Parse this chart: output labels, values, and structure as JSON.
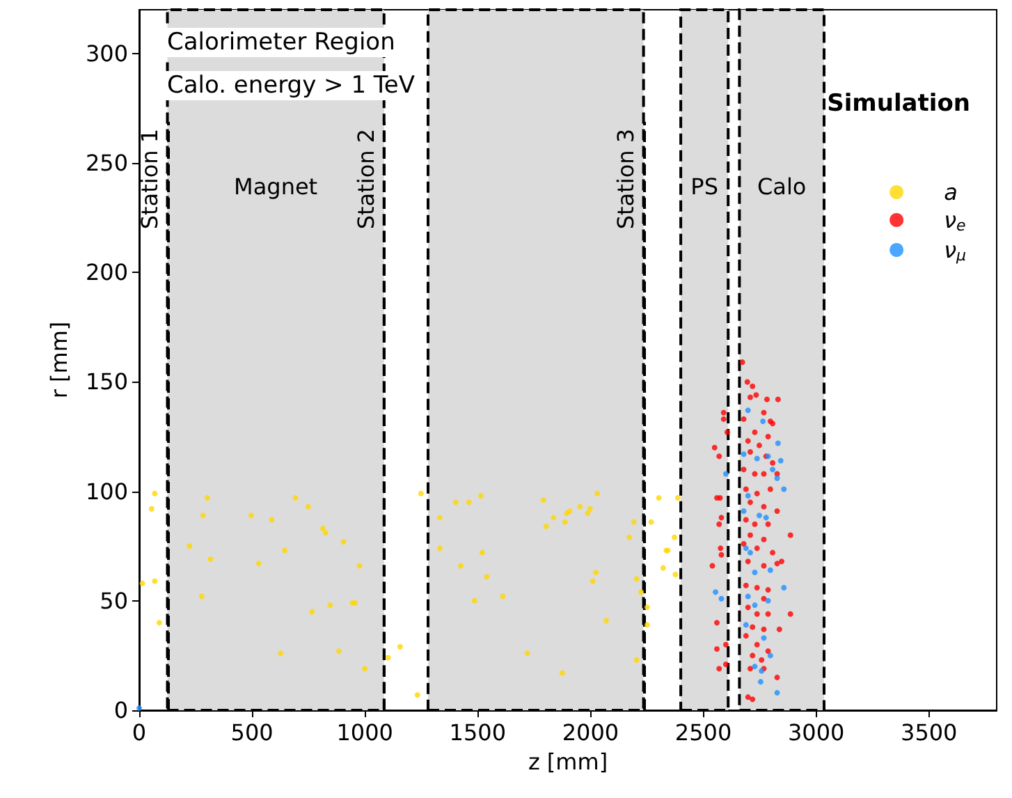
{
  "chart_data": {
    "type": "scatter",
    "xlabel": "z [mm]",
    "ylabel": "r [mm]",
    "xlim": [
      0,
      3800
    ],
    "xticks": [
      0,
      500,
      1000,
      1500,
      2000,
      2500,
      3000,
      3500
    ],
    "ylim": [
      0,
      320
    ],
    "yticks": [
      0,
      50,
      100,
      150,
      200,
      250,
      300
    ],
    "grid": false,
    "legend": "top right",
    "marker": "circle",
    "annotations": [
      "Calorimeter Region",
      "Calo. energy > 1 TeV",
      "Simulation"
    ],
    "ref_lines": [
      {
        "axis": "x",
        "value": 125,
        "label": "Station 1",
        "color": "#000000",
        "line_style": "dashed"
      },
      {
        "axis": "x",
        "value": 1085,
        "label": "Station 2",
        "color": "#000000",
        "line_style": "dashed"
      },
      {
        "axis": "x",
        "value": 2235,
        "label": "Station 3",
        "color": "#000000",
        "line_style": "dashed"
      }
    ],
    "bands": [
      {
        "axis": "x",
        "from": 125,
        "to": 1085,
        "label": "Magnet",
        "color": "#dcdcdc"
      },
      {
        "axis": "x",
        "from": 1280,
        "to": 2235,
        "label": null,
        "color": "#dcdcdc"
      },
      {
        "axis": "x",
        "from": 2400,
        "to": 2610,
        "label": "PS",
        "color": "#dcdcdc"
      },
      {
        "axis": "x",
        "from": 2660,
        "to": 3035,
        "label": "Calo",
        "color": "#dcdcdc"
      }
    ],
    "series": [
      {
        "name": "a",
        "color": "#ffd700",
        "x": [
          14,
          55,
          69,
          69,
          89,
          223,
          277,
          283,
          302,
          316,
          496,
          530,
          587,
          627,
          645,
          692,
          749,
          766,
          814,
          826,
          846,
          885,
          905,
          945,
          957,
          976,
          1000,
          1103,
          1156,
          1233,
          1249,
          1332,
          1332,
          1403,
          1425,
          1461,
          1486,
          1514,
          1520,
          1540,
          1611,
          1720,
          1791,
          1804,
          1836,
          1875,
          1887,
          1895,
          1907,
          1953,
          1988,
          1998,
          2010,
          2024,
          2030,
          2070,
          2172,
          2192,
          2204,
          2204,
          2224,
          2251,
          2251,
          2269,
          2303,
          2322,
          2336,
          2387,
          2372,
          2342,
          2376
        ],
        "values": [
          58,
          92,
          99,
          59,
          40,
          75,
          52,
          89,
          97,
          69,
          89,
          67,
          87,
          26,
          73,
          97,
          93,
          45,
          83,
          81,
          48,
          27,
          77,
          49,
          49,
          66,
          19,
          24,
          29,
          7,
          99,
          88,
          74,
          95,
          66,
          95,
          50,
          98,
          72,
          61,
          52,
          26,
          96,
          84,
          88,
          17,
          86,
          90,
          91,
          93,
          90,
          92,
          59,
          63,
          99,
          41,
          79,
          86,
          60,
          23,
          54,
          47,
          39,
          86,
          97,
          65,
          73,
          97,
          79,
          73,
          62
        ]
      },
      {
        "name": "ν$_{e}$",
        "color": "#ff0000",
        "x": [
          2673,
          2695,
          2718,
          2734,
          2708,
          2782,
          2831,
          2590,
          2768,
          2797,
          2807,
          2679,
          2590,
          2606,
          2728,
          2787,
          2550,
          2570,
          2698,
          2748,
          2708,
          2778,
          2807,
          2679,
          2728,
          2768,
          2827,
          2560,
          2574,
          2689,
          2738,
          2797,
          2708,
          2768,
          2827,
          2580,
          2570,
          2689,
          2728,
          2787,
          2708,
          2768,
          2886,
          2679,
          2738,
          2807,
          2576,
          2580,
          2540,
          2698,
          2768,
          2827,
          2847,
          2689,
          2738,
          2787,
          2768,
          2698,
          2738,
          2787,
          2886,
          2560,
          2718,
          2768,
          2837,
          2600,
          2560,
          2689,
          2738,
          2787,
          2718,
          2758,
          2570,
          2600,
          2708,
          2768,
          2827,
          2698,
          2718
        ],
        "values": [
          159,
          150,
          148,
          144,
          143,
          142,
          142,
          136,
          136,
          132,
          131,
          133,
          133,
          127,
          127,
          125,
          120,
          116,
          123,
          121,
          118,
          116,
          113,
          110,
          108,
          108,
          108,
          97,
          97,
          101,
          99,
          101,
          95,
          93,
          91,
          88,
          85,
          87,
          85,
          85,
          80,
          78,
          80,
          76,
          74,
          72,
          74,
          71,
          66,
          68,
          66,
          67,
          68,
          57,
          56,
          55,
          51,
          47,
          44,
          44,
          44,
          40,
          38,
          37,
          37,
          30,
          28,
          34,
          30,
          27,
          25,
          23,
          19,
          21,
          19,
          19,
          15,
          6,
          5
        ]
      },
      {
        "name": "ν$_{μ}$",
        "color": "#1e90ff",
        "x": [
          0,
          2698,
          2764,
          2831,
          2679,
          2738,
          2787,
          2843,
          2600,
          2807,
          2827,
          2857,
          2698,
          2679,
          2748,
          2778,
          2689,
          2708,
          2797,
          2728,
          2857,
          2554,
          2580,
          2698,
          2787,
          2728,
          2689,
          2768,
          2797,
          2728,
          2758,
          2754,
          2827
        ],
        "values": [
          1,
          137,
          132,
          122,
          117,
          115,
          116,
          114,
          108,
          110,
          106,
          101,
          98,
          91,
          89,
          88,
          74,
          72,
          64,
          63,
          56,
          54,
          51,
          52,
          50,
          48,
          39,
          33,
          25,
          20,
          18,
          13,
          8
        ]
      }
    ]
  }
}
